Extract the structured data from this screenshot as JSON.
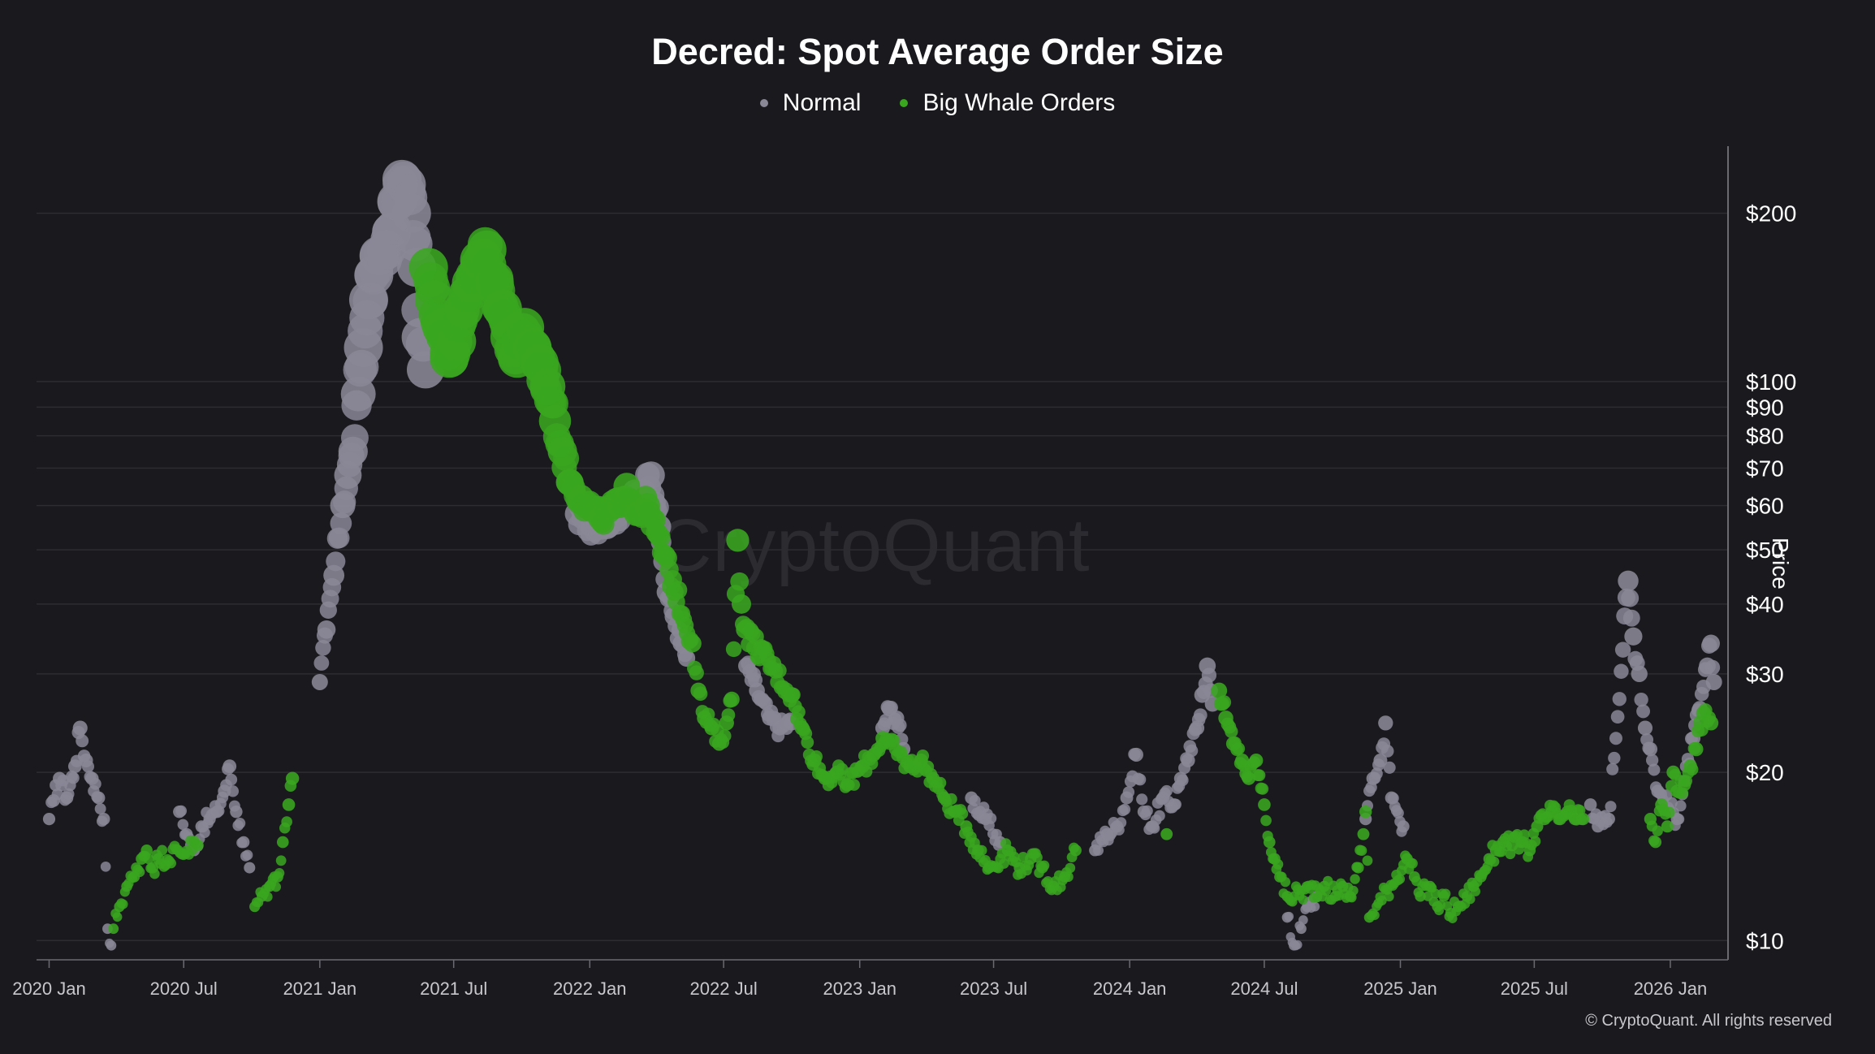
{
  "colors": {
    "background": "#1a1a1e",
    "normal": "#8a8796",
    "big_whale": "#3aa620",
    "grid": "#2c2c31",
    "axis": "#6a6a70"
  },
  "copyright": "© CryptoQuant. All rights reserved",
  "watermark": "CryptoQuant",
  "chart_data": {
    "type": "scatter",
    "title": "Decred: Spot Average Order Size",
    "legend_position": "top-center",
    "ylabel": "Price",
    "yscale": "log",
    "ylim": [
      9.3,
      255
    ],
    "xlim": [
      "2019-12-15",
      "2026-03-20"
    ],
    "grid": true,
    "y_ticks": [
      {
        "value": 10,
        "label": "$10"
      },
      {
        "value": 20,
        "label": "$20"
      },
      {
        "value": 30,
        "label": "$30"
      },
      {
        "value": 40,
        "label": "$40"
      },
      {
        "value": 50,
        "label": "$50"
      },
      {
        "value": 60,
        "label": "$60"
      },
      {
        "value": 70,
        "label": "$70"
      },
      {
        "value": 80,
        "label": "$80"
      },
      {
        "value": 90,
        "label": "$90"
      },
      {
        "value": 100,
        "label": "$100"
      },
      {
        "value": 200,
        "label": "$200"
      }
    ],
    "x_ticks": [
      {
        "date": "2020-01-01",
        "label": "2020 Jan"
      },
      {
        "date": "2020-07-01",
        "label": "2020 Jul"
      },
      {
        "date": "2021-01-01",
        "label": "2021 Jan"
      },
      {
        "date": "2021-07-01",
        "label": "2021 Jul"
      },
      {
        "date": "2022-01-01",
        "label": "2022 Jan"
      },
      {
        "date": "2022-07-01",
        "label": "2022 Jul"
      },
      {
        "date": "2023-01-01",
        "label": "2023 Jan"
      },
      {
        "date": "2023-07-01",
        "label": "2023 Jul"
      },
      {
        "date": "2024-01-01",
        "label": "2024 Jan"
      },
      {
        "date": "2024-07-01",
        "label": "2024 Jul"
      },
      {
        "date": "2025-01-01",
        "label": "2025 Jan"
      },
      {
        "date": "2025-07-01",
        "label": "2025 Jul"
      },
      {
        "date": "2026-01-01",
        "label": "2026 Jan"
      }
    ],
    "series": [
      {
        "name": "Normal",
        "color": "#8a8796",
        "points": [
          [
            "2020-01-01",
            16.5
          ],
          [
            "2020-01-07",
            17.8
          ],
          [
            "2020-01-15",
            19.5
          ],
          [
            "2020-01-25",
            18.0
          ],
          [
            "2020-02-05",
            20.5
          ],
          [
            "2020-02-12",
            24.0
          ],
          [
            "2020-02-20",
            21.0
          ],
          [
            "2020-02-28",
            19.5
          ],
          [
            "2020-03-08",
            18.0
          ],
          [
            "2020-03-15",
            16.5
          ],
          [
            "2020-03-20",
            10.5
          ],
          [
            "2020-03-25",
            9.8
          ],
          [
            "2020-06-25",
            17.0
          ],
          [
            "2020-07-05",
            15.5
          ],
          [
            "2020-07-15",
            14.5
          ],
          [
            "2020-07-25",
            16.0
          ],
          [
            "2020-08-05",
            16.5
          ],
          [
            "2020-08-15",
            17.0
          ],
          [
            "2020-08-25",
            18.5
          ],
          [
            "2020-09-01",
            20.5
          ],
          [
            "2020-09-10",
            17.0
          ],
          [
            "2020-09-20",
            15.0
          ],
          [
            "2020-09-28",
            13.5
          ],
          [
            "2021-01-01",
            29.0
          ],
          [
            "2021-01-10",
            36.0
          ],
          [
            "2021-01-20",
            45.0
          ],
          [
            "2021-02-01",
            60.0
          ],
          [
            "2021-02-08",
            68.0
          ],
          [
            "2021-02-15",
            75.0
          ],
          [
            "2021-02-22",
            95.0
          ],
          [
            "2021-03-01",
            115.0
          ],
          [
            "2021-03-08",
            140.0
          ],
          [
            "2021-03-15",
            155.0
          ],
          [
            "2021-03-22",
            168.0
          ],
          [
            "2021-04-01",
            172.0
          ],
          [
            "2021-04-08",
            185.0
          ],
          [
            "2021-04-15",
            210.0
          ],
          [
            "2021-04-22",
            230.0
          ],
          [
            "2021-04-28",
            225.0
          ],
          [
            "2021-05-05",
            200.0
          ],
          [
            "2021-05-12",
            160.0
          ],
          [
            "2021-05-18",
            120.0
          ],
          [
            "2021-05-24",
            105.0
          ],
          [
            "2021-12-15",
            58.0
          ],
          [
            "2022-01-05",
            55.0
          ],
          [
            "2022-02-01",
            57.0
          ],
          [
            "2022-03-10",
            63.0
          ],
          [
            "2022-03-25",
            68.0
          ],
          [
            "2022-04-05",
            55.0
          ],
          [
            "2022-04-15",
            42.0
          ],
          [
            "2022-04-25",
            38.0
          ],
          [
            "2022-05-05",
            34.0
          ],
          [
            "2022-05-12",
            32.0
          ],
          [
            "2022-08-01",
            31.0
          ],
          [
            "2022-08-15",
            28.0
          ],
          [
            "2022-09-01",
            25.0
          ],
          [
            "2022-09-15",
            24.0
          ],
          [
            "2022-10-01",
            24.5
          ],
          [
            "2023-02-01",
            24.0
          ],
          [
            "2023-02-10",
            26.0
          ],
          [
            "2023-02-20",
            25.0
          ],
          [
            "2023-03-01",
            22.0
          ],
          [
            "2023-06-01",
            18.0
          ],
          [
            "2023-06-20",
            16.5
          ],
          [
            "2023-07-10",
            15.0
          ],
          [
            "2023-11-15",
            14.5
          ],
          [
            "2023-12-01",
            15.5
          ],
          [
            "2023-12-15",
            16.0
          ],
          [
            "2023-12-28",
            18.0
          ],
          [
            "2024-01-10",
            21.5
          ],
          [
            "2024-01-20",
            17.0
          ],
          [
            "2024-02-01",
            16.0
          ],
          [
            "2024-02-15",
            18.0
          ],
          [
            "2024-03-01",
            17.5
          ],
          [
            "2024-03-10",
            19.5
          ],
          [
            "2024-03-20",
            21.0
          ],
          [
            "2024-04-01",
            24.0
          ],
          [
            "2024-04-08",
            27.5
          ],
          [
            "2024-04-15",
            31.0
          ],
          [
            "2024-04-22",
            26.5
          ],
          [
            "2024-08-01",
            11.0
          ],
          [
            "2024-08-10",
            9.8
          ],
          [
            "2024-08-20",
            10.5
          ],
          [
            "2024-08-28",
            11.5
          ],
          [
            "2024-09-10",
            12.0
          ],
          [
            "2024-11-15",
            16.5
          ],
          [
            "2024-11-25",
            19.5
          ],
          [
            "2024-12-05",
            21.0
          ],
          [
            "2024-12-12",
            24.5
          ],
          [
            "2024-12-20",
            18.0
          ],
          [
            "2025-01-05",
            16.0
          ],
          [
            "2025-09-15",
            17.5
          ],
          [
            "2025-09-25",
            16.0
          ],
          [
            "2025-10-10",
            16.5
          ],
          [
            "2025-11-05",
            44.0
          ],
          [
            "2025-11-12",
            35.0
          ],
          [
            "2025-11-20",
            30.0
          ],
          [
            "2025-11-28",
            24.0
          ],
          [
            "2025-12-05",
            22.0
          ],
          [
            "2025-12-15",
            18.5
          ],
          [
            "2026-01-10",
            16.5
          ],
          [
            "2026-02-01",
            23.0
          ],
          [
            "2026-02-10",
            26.0
          ],
          [
            "2026-02-20",
            31.0
          ],
          [
            "2026-02-25",
            34.0
          ],
          [
            "2026-03-01",
            29.0
          ]
        ]
      },
      {
        "name": "Big Whale Orders",
        "color": "#3aa620",
        "points": [
          [
            "2020-03-28",
            10.5
          ],
          [
            "2020-04-05",
            11.5
          ],
          [
            "2020-04-15",
            12.5
          ],
          [
            "2020-04-25",
            13.0
          ],
          [
            "2020-05-05",
            14.0
          ],
          [
            "2020-05-12",
            14.5
          ],
          [
            "2020-05-20",
            13.5
          ],
          [
            "2020-05-28",
            14.0
          ],
          [
            "2020-07-20",
            14.8
          ],
          [
            "2020-10-05",
            11.5
          ],
          [
            "2020-10-15",
            12.0
          ],
          [
            "2020-10-25",
            12.5
          ],
          [
            "2020-11-05",
            13.0
          ],
          [
            "2020-11-12",
            15.0
          ],
          [
            "2020-11-20",
            17.5
          ],
          [
            "2020-11-25",
            19.5
          ],
          [
            "2021-05-28",
            160.0
          ],
          [
            "2021-06-05",
            140.0
          ],
          [
            "2021-06-15",
            125.0
          ],
          [
            "2021-06-25",
            110.0
          ],
          [
            "2021-07-05",
            118.0
          ],
          [
            "2021-07-15",
            135.0
          ],
          [
            "2021-07-25",
            150.0
          ],
          [
            "2021-08-05",
            165.0
          ],
          [
            "2021-08-15",
            172.0
          ],
          [
            "2021-08-25",
            150.0
          ],
          [
            "2021-09-05",
            135.0
          ],
          [
            "2021-09-15",
            120.0
          ],
          [
            "2021-09-25",
            110.0
          ],
          [
            "2021-10-05",
            125.0
          ],
          [
            "2021-10-15",
            115.0
          ],
          [
            "2021-10-25",
            108.0
          ],
          [
            "2021-11-05",
            98.0
          ],
          [
            "2021-11-15",
            85.0
          ],
          [
            "2021-11-25",
            75.0
          ],
          [
            "2021-12-05",
            66.0
          ],
          [
            "2021-12-20",
            62.0
          ],
          [
            "2022-01-15",
            57.0
          ],
          [
            "2022-02-10",
            60.0
          ],
          [
            "2022-02-20",
            65.0
          ],
          [
            "2022-03-05",
            58.0
          ],
          [
            "2022-03-20",
            60.0
          ],
          [
            "2022-05-20",
            34.0
          ],
          [
            "2022-05-28",
            28.0
          ],
          [
            "2022-06-05",
            25.0
          ],
          [
            "2022-06-15",
            24.0
          ],
          [
            "2022-06-25",
            22.5
          ],
          [
            "2022-07-05",
            24.5
          ],
          [
            "2022-07-12",
            27.0
          ],
          [
            "2022-07-20",
            52.0
          ],
          [
            "2022-07-25",
            40.0
          ],
          [
            "2022-07-30",
            36.0
          ],
          [
            "2022-10-01",
            27.5
          ],
          [
            "2022-10-15",
            24.0
          ],
          [
            "2022-11-01",
            21.0
          ],
          [
            "2022-11-15",
            19.5
          ],
          [
            "2022-12-01",
            20.0
          ],
          [
            "2022-12-15",
            19.0
          ],
          [
            "2023-01-05",
            20.5
          ],
          [
            "2023-01-20",
            21.5
          ],
          [
            "2023-02-01",
            23.0
          ],
          [
            "2023-03-10",
            20.5
          ],
          [
            "2023-03-25",
            21.0
          ],
          [
            "2023-04-10",
            19.5
          ],
          [
            "2023-04-25",
            18.0
          ],
          [
            "2023-05-10",
            17.0
          ],
          [
            "2023-05-25",
            16.0
          ],
          [
            "2023-06-10",
            14.5
          ],
          [
            "2023-06-25",
            13.5
          ],
          [
            "2023-07-20",
            14.5
          ],
          [
            "2023-08-05",
            13.5
          ],
          [
            "2023-08-20",
            14.0
          ],
          [
            "2023-09-05",
            13.5
          ],
          [
            "2023-09-20",
            12.5
          ],
          [
            "2023-10-05",
            13.0
          ],
          [
            "2023-10-20",
            14.5
          ],
          [
            "2024-02-20",
            15.5
          ],
          [
            "2024-05-01",
            28.0
          ],
          [
            "2024-05-10",
            25.0
          ],
          [
            "2024-05-20",
            22.5
          ],
          [
            "2024-06-01",
            21.0
          ],
          [
            "2024-06-10",
            19.5
          ],
          [
            "2024-06-20",
            21.0
          ],
          [
            "2024-07-01",
            17.5
          ],
          [
            "2024-07-08",
            15.0
          ],
          [
            "2024-07-15",
            14.0
          ],
          [
            "2024-07-22",
            13.0
          ],
          [
            "2024-08-01",
            12.0
          ],
          [
            "2024-09-20",
            12.5
          ],
          [
            "2024-10-05",
            12.0
          ],
          [
            "2024-10-15",
            12.5
          ],
          [
            "2024-10-25",
            12.0
          ],
          [
            "2024-11-05",
            13.5
          ],
          [
            "2024-11-12",
            15.5
          ],
          [
            "2024-11-15",
            17.0
          ],
          [
            "2024-11-20",
            11.0
          ],
          [
            "2025-01-10",
            14.0
          ],
          [
            "2025-01-20",
            13.0
          ],
          [
            "2025-01-28",
            12.0
          ],
          [
            "2025-02-10",
            12.5
          ],
          [
            "2025-02-20",
            11.5
          ],
          [
            "2025-03-01",
            12.0
          ],
          [
            "2025-03-10",
            11.2
          ],
          [
            "2025-03-20",
            11.5
          ],
          [
            "2025-04-01",
            12.0
          ],
          [
            "2025-04-10",
            12.5
          ],
          [
            "2025-04-20",
            13.0
          ],
          [
            "2025-05-01",
            14.0
          ],
          [
            "2025-05-10",
            14.5
          ],
          [
            "2025-05-20",
            15.0
          ],
          [
            "2025-06-01",
            14.8
          ],
          [
            "2025-06-15",
            15.0
          ],
          [
            "2025-06-25",
            14.5
          ],
          [
            "2025-07-05",
            16.0
          ],
          [
            "2025-07-15",
            16.5
          ],
          [
            "2025-07-25",
            17.0
          ],
          [
            "2025-08-05",
            16.5
          ],
          [
            "2025-08-15",
            17.0
          ],
          [
            "2025-08-25",
            16.5
          ],
          [
            "2025-09-05",
            16.5
          ],
          [
            "2025-12-05",
            16.5
          ],
          [
            "2025-12-12",
            15.0
          ],
          [
            "2025-12-20",
            17.5
          ],
          [
            "2025-12-28",
            16.0
          ],
          [
            "2026-01-05",
            20.0
          ],
          [
            "2026-01-10",
            18.5
          ],
          [
            "2026-01-20",
            19.0
          ],
          [
            "2026-01-28",
            20.5
          ],
          [
            "2026-02-05",
            22.0
          ],
          [
            "2026-02-15",
            25.5
          ],
          [
            "2026-02-25",
            24.5
          ]
        ]
      }
    ]
  }
}
